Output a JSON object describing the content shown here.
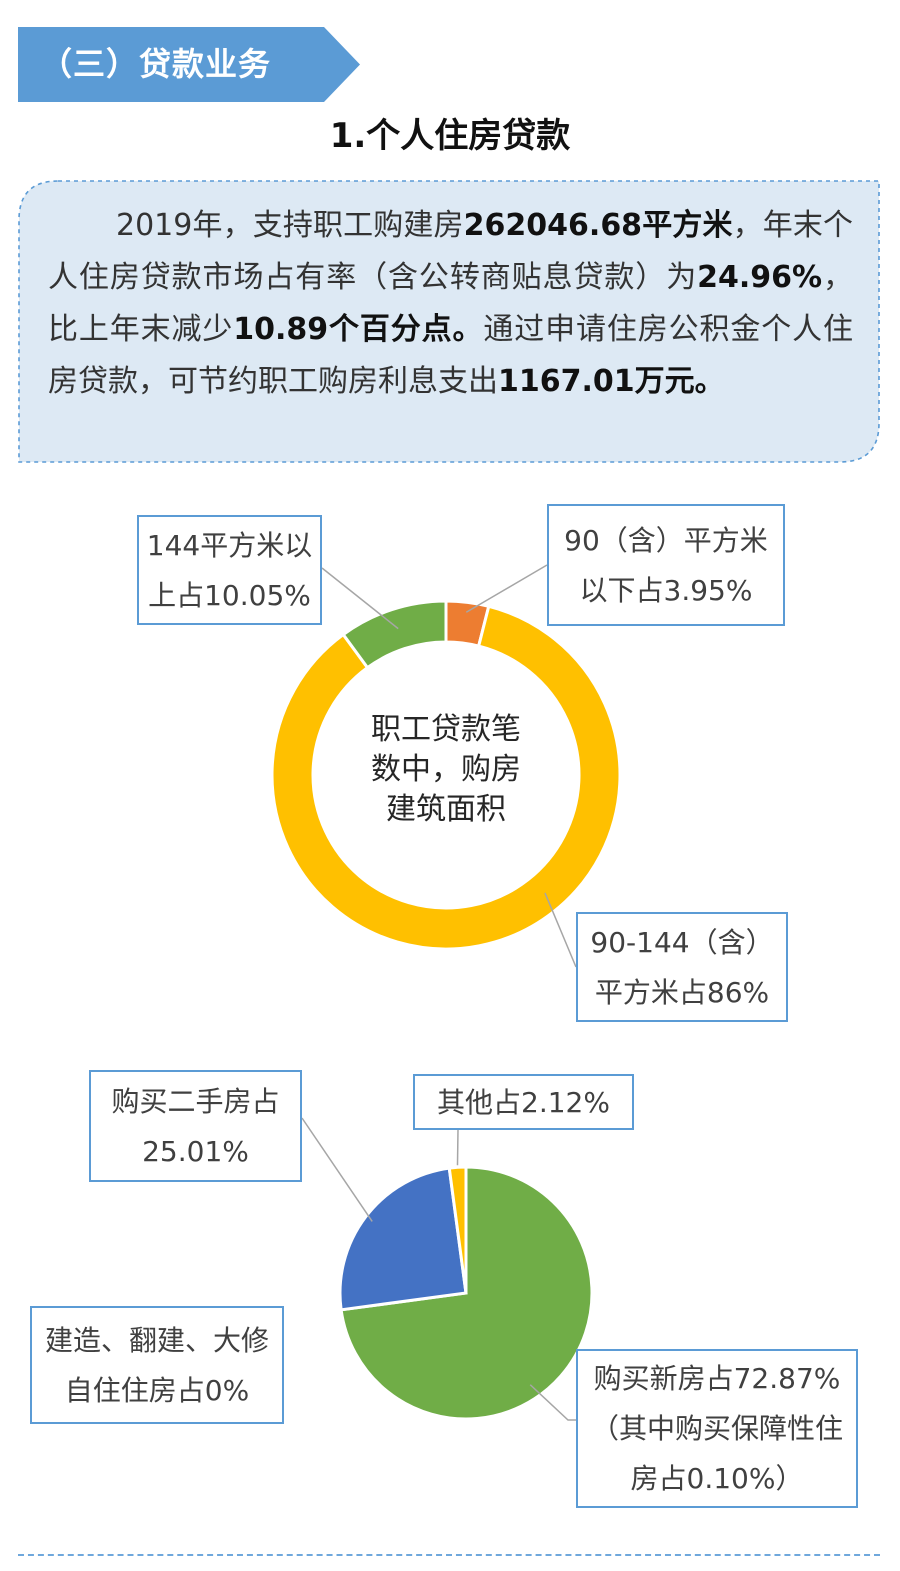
{
  "section": {
    "banner_title": "（三）贷款业务",
    "subtitle": "1.个人住房贷款"
  },
  "summary": {
    "p1_text": "2019年，支持职工购建房",
    "p1_area": "262046.68平方米",
    "p1_text2": "，年末个人住房贷款市场占有率（含公转商贴息贷款）为",
    "p1_rate": "24.96%",
    "p1_text3": "，比上年末减少",
    "p1_decrease": "10.89个百分点。",
    "p1_text4": "通过申请住房公积金个人住房贷款，可节约职工购房利息支出",
    "p1_saving": "1167.01万元。"
  },
  "colors": {
    "banner": "#5b9bd5",
    "box_fill": "#dde9f4",
    "box_border": "#5b9bd5",
    "orange": "#ed7d31",
    "yellow": "#ffc000",
    "green": "#70ad47",
    "blue": "#4472c4"
  },
  "chart_data": [
    {
      "type": "pie",
      "donut": true,
      "center_label": [
        "职工贷款笔",
        "数中，购房",
        "建筑面积"
      ],
      "slices": [
        {
          "label_lines": [
            "90（含）平方米",
            "以下占3.95%"
          ],
          "value": 3.95,
          "color": "#ed7d31"
        },
        {
          "label_lines": [
            "90-144（含）",
            "平方米占86%"
          ],
          "value": 86.0,
          "color": "#ffc000"
        },
        {
          "label_lines": [
            "144平方米以",
            "上占10.05%"
          ],
          "value": 10.05,
          "color": "#70ad47"
        }
      ]
    },
    {
      "type": "pie",
      "donut": false,
      "slices": [
        {
          "label_lines": [
            "购买新房占72.87%",
            "（其中购买保障性住",
            "房占0.10%）"
          ],
          "value": 72.87,
          "color": "#70ad47"
        },
        {
          "label_lines": [
            "建造、翻建、大修",
            "自住住房占0%"
          ],
          "value": 0.0,
          "color": "#5b9bd5"
        },
        {
          "label_lines": [
            "购买二手房占",
            "25.01%"
          ],
          "value": 25.01,
          "color": "#4472c4"
        },
        {
          "label_lines": [
            "其他占2.12%"
          ],
          "value": 2.12,
          "color": "#ffc000"
        }
      ]
    }
  ]
}
